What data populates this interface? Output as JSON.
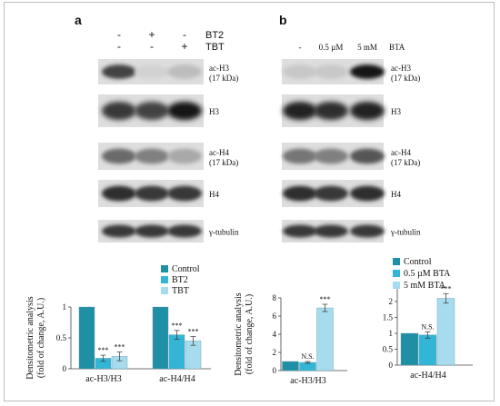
{
  "panel_a": {
    "letter": "a",
    "treatment_rows": [
      {
        "label": "BT2",
        "marks": [
          "-",
          "+",
          "-"
        ]
      },
      {
        "label": "TBT",
        "marks": [
          "-",
          "-",
          "+"
        ]
      }
    ],
    "blots": [
      {
        "label_line1": "ac-H3",
        "label_line2": "(17 kDa)"
      },
      {
        "label_line1": "H3",
        "label_line2": ""
      },
      {
        "label_line1": "ac-H4",
        "label_line2": "(17 kDa)"
      },
      {
        "label_line1": "H4",
        "label_line2": ""
      },
      {
        "label_line1": "γ-tubulin",
        "label_line2": ""
      }
    ]
  },
  "panel_b": {
    "letter": "b",
    "lanes": [
      "-",
      "0.5 µM",
      "5 mM"
    ],
    "treatment_label": "BTA",
    "blots": [
      {
        "label_line1": "ac-H3",
        "label_line2": "(17 kDa)"
      },
      {
        "label_line1": "H3",
        "label_line2": ""
      },
      {
        "label_line1": "ac-H4",
        "label_line2": "(17 kDa)"
      },
      {
        "label_line1": "H4",
        "label_line2": ""
      },
      {
        "label_line1": "γ-tubulin",
        "label_line2": ""
      }
    ]
  },
  "colors": {
    "control": "#1f8fa6",
    "treat1": "#33b6d6",
    "treat2": "#a6dced"
  },
  "chart_data": [
    {
      "type": "bar",
      "ylabel_line1": "Densitometric analysis",
      "ylabel_line2": "(fold of change, A.U.)",
      "categories": [
        "ac-H3/H3",
        "ac-H4/H4"
      ],
      "yticks": [
        "0",
        "0.5",
        "1"
      ],
      "ylim": [
        0,
        1
      ],
      "legend_placement": "top-right",
      "series": [
        {
          "name": "Control",
          "values": [
            1.0,
            1.0
          ],
          "errors": [
            0,
            0
          ],
          "annot": [
            "",
            ""
          ]
        },
        {
          "name": "BT2",
          "values": [
            0.17,
            0.55
          ],
          "errors": [
            0.05,
            0.07
          ],
          "annot": [
            "***",
            "***"
          ]
        },
        {
          "name": "TBT",
          "values": [
            0.2,
            0.45
          ],
          "errors": [
            0.07,
            0.07
          ],
          "annot": [
            "***",
            "***"
          ]
        }
      ]
    },
    {
      "type": "bar",
      "ylabel_line1": "Densitometric analysis",
      "ylabel_line2": "(fold of change, A.U.)",
      "categories": [
        "ac-H3/H3"
      ],
      "yticks": [
        "0",
        "2",
        "4",
        "6",
        "8"
      ],
      "ylim": [
        0,
        8
      ],
      "series": [
        {
          "name": "Control",
          "values": [
            1.0
          ],
          "errors": [
            0
          ],
          "annot": [
            ""
          ]
        },
        {
          "name": "0.5 µM BTA",
          "values": [
            0.9
          ],
          "errors": [
            0.1
          ],
          "annot": [
            "N.S."
          ]
        },
        {
          "name": "5 mM BTA",
          "values": [
            6.9
          ],
          "errors": [
            0.4
          ],
          "annot": [
            "***"
          ]
        }
      ]
    },
    {
      "type": "bar",
      "categories": [
        "ac-H4/H4"
      ],
      "yticks": [
        "0",
        "0.5",
        "1",
        "1.5",
        "2"
      ],
      "ylim": [
        0,
        2.4
      ],
      "legend_placement": "top",
      "series": [
        {
          "name": "Control",
          "values": [
            1.0
          ],
          "errors": [
            0
          ],
          "annot": [
            ""
          ]
        },
        {
          "name": "0.5 µM BTA",
          "values": [
            0.95
          ],
          "errors": [
            0.1
          ],
          "annot": [
            "N.S."
          ]
        },
        {
          "name": "5 mM BTA",
          "values": [
            2.1
          ],
          "errors": [
            0.15
          ],
          "annot": [
            "***"
          ]
        }
      ]
    }
  ]
}
